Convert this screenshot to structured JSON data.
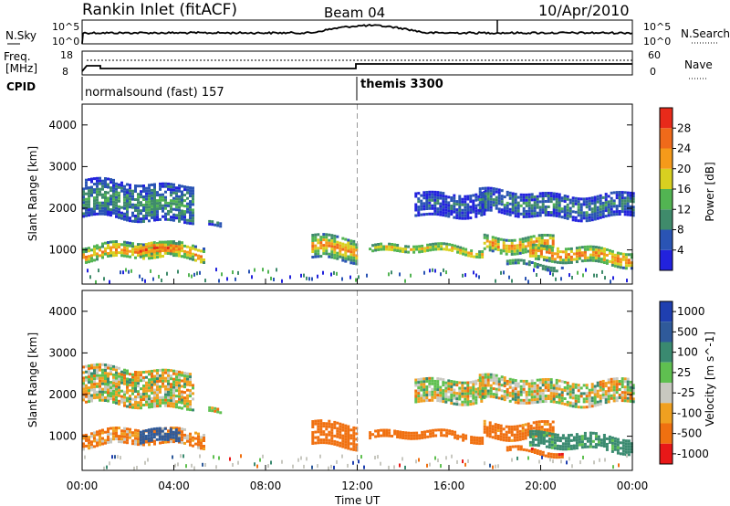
{
  "header": {
    "station": "Rankin Inlet (fitACF)",
    "beam": "Beam 04",
    "date": "10/Apr/2010"
  },
  "noise_panel": {
    "left_label": "N.Sky",
    "right_label": "N.Search",
    "left_ticks": [
      "10^5",
      "10^0"
    ],
    "right_ticks": [
      "10^5",
      "10^0"
    ]
  },
  "freq_panel": {
    "left_label_1": "Freq.",
    "left_label_2": "[MHz]",
    "right_label": "Nave",
    "left_ticks": [
      "18",
      "8"
    ],
    "right_ticks": [
      "60",
      "0"
    ]
  },
  "cpid": {
    "label": "CPID",
    "programs": [
      {
        "name": "normalsound (fast) 157",
        "start_hour": 0
      },
      {
        "name": "themis 3300",
        "start_hour": 12
      }
    ]
  },
  "x_axis": {
    "label": "Time UT",
    "ticks": [
      "00:00",
      "04:00",
      "08:00",
      "12:00",
      "16:00",
      "20:00",
      "00:00"
    ],
    "range_hours": [
      0,
      24
    ]
  },
  "power_panel": {
    "ylabel": "Slant Range [km]",
    "yticks": [
      "1000",
      "2000",
      "3000",
      "4000"
    ],
    "colorbar_label": "Power [dB]",
    "colorbar_ticks": [
      "4",
      "8",
      "12",
      "16",
      "20",
      "24",
      "28"
    ],
    "colors": [
      "#2222dd",
      "#2a54b4",
      "#3f8b6b",
      "#52b452",
      "#d8d020",
      "#f59a1a",
      "#f06a1a",
      "#e82a1a"
    ]
  },
  "velocity_panel": {
    "ylabel": "Slant Range [km]",
    "yticks": [
      "1000",
      "2000",
      "3000",
      "4000"
    ],
    "colorbar_label": "Velocity [m s^-1]",
    "colorbar_ticks": [
      "1000",
      "500",
      "100",
      "25",
      "-25",
      "-100",
      "-500",
      "-1000"
    ],
    "colors": [
      "#1f3fb0",
      "#2f5a9a",
      "#3a8a70",
      "#5fc050",
      "#c8c8c0",
      "#f0a020",
      "#f07010",
      "#e81818"
    ]
  },
  "chart_data": {
    "type": "heatmap",
    "x_range_hours": [
      0,
      24
    ],
    "y_range_km": [
      180,
      4500
    ],
    "ylabel": "Slant Range [km]",
    "xlabel": "Time UT",
    "grid": false,
    "echo_regions": [
      {
        "t_start": 0.0,
        "t_end": 5.3,
        "range_start_km": 700,
        "range_end_km": 1200,
        "power_db": 24,
        "velocity": -100
      },
      {
        "t_start": 0.0,
        "t_end": 4.8,
        "range_start_km": 1700,
        "range_end_km": 2700,
        "power_db": 12,
        "velocity": 0
      },
      {
        "t_start": 2.5,
        "t_end": 4.2,
        "range_start_km": 850,
        "range_end_km": 1250,
        "power_db": 28,
        "velocity": 700
      },
      {
        "t_start": 5.5,
        "t_end": 6.0,
        "range_start_km": 1550,
        "range_end_km": 1750,
        "power_db": 8,
        "velocity": 0
      },
      {
        "t_start": 10.0,
        "t_end": 12.0,
        "range_start_km": 750,
        "range_end_km": 1400,
        "power_db": 24,
        "velocity": -300
      },
      {
        "t_start": 12.5,
        "t_end": 17.5,
        "range_start_km": 850,
        "range_end_km": 1150,
        "power_db": 20,
        "velocity": -300
      },
      {
        "t_start": 14.5,
        "t_end": 17.5,
        "range_start_km": 1850,
        "range_end_km": 2500,
        "power_db": 6,
        "velocity": 0
      },
      {
        "t_start": 17.3,
        "t_end": 24.0,
        "range_start_km": 1800,
        "range_end_km": 2450,
        "power_db": 10,
        "velocity": 0
      },
      {
        "t_start": 17.5,
        "t_end": 20.5,
        "range_start_km": 1000,
        "range_end_km": 1450,
        "power_db": 24,
        "velocity": -200
      },
      {
        "t_start": 19.5,
        "t_end": 24.0,
        "range_start_km": 650,
        "range_end_km": 1100,
        "power_db": 26,
        "velocity": 200
      },
      {
        "t_start": 18.5,
        "t_end": 21.0,
        "range_start_km": 550,
        "range_end_km": 750,
        "power_db": 12,
        "velocity": -400
      }
    ]
  }
}
